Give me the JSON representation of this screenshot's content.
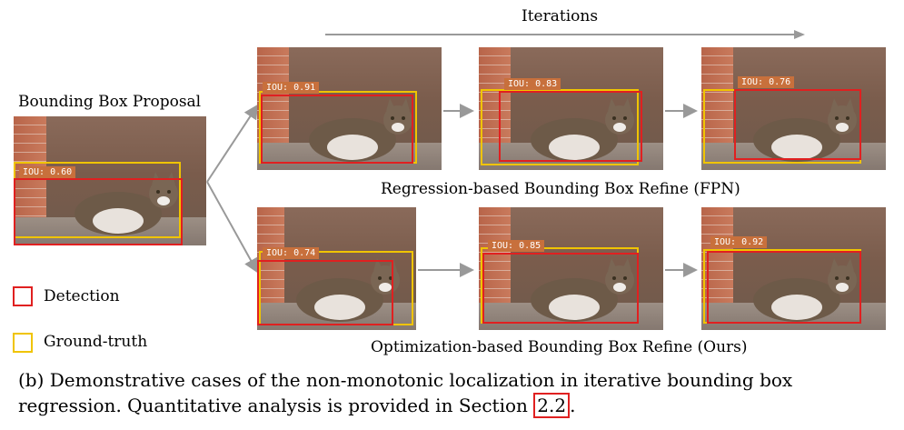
{
  "header": {
    "iterations_label": "Iterations"
  },
  "proposal": {
    "title": "Bounding Box Proposal",
    "iou": "IOU: 0.60"
  },
  "rows": {
    "fpn": {
      "label": "Regression-based Bounding Box Refine (FPN)",
      "ious": [
        "IOU: 0.91",
        "IOU: 0.83",
        "IOU: 0.76"
      ]
    },
    "ours": {
      "label": "Optimization-based Bounding Box Refine (Ours)",
      "ious": [
        "IOU: 0.74",
        "IOU: 0.85",
        "IOU: 0.92"
      ]
    }
  },
  "legend": {
    "detection": "Detection",
    "ground_truth": "Ground-truth"
  },
  "caption": {
    "line1": "(b) Demonstrative cases of the non-monotonic localization in iterative bounding box",
    "line2_prefix": "regression. Quantitative analysis is provided in Section ",
    "section_ref": "2.2",
    "line2_suffix": "."
  },
  "colors": {
    "detection": "#e02020",
    "ground_truth": "#f0c400",
    "arrow": "#999999"
  }
}
